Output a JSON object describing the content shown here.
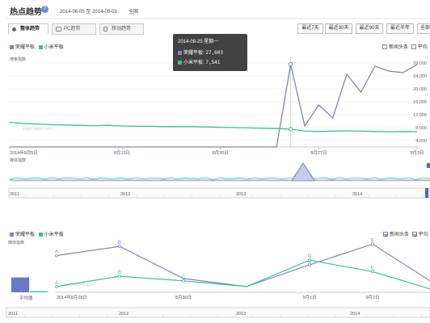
{
  "header": {
    "title": "热点趋势",
    "help_icon": "question-icon",
    "date_start": "2014-08-05",
    "date_sep": "至",
    "date_end": "2014-09-03",
    "region": "全国"
  },
  "tabs": [
    {
      "label": "整体趋势",
      "icon": "overall-icon",
      "active": true
    },
    {
      "label": "PC趋势",
      "icon": "monitor-icon",
      "active": false
    },
    {
      "label": "移动趋势",
      "icon": "mobile-icon",
      "active": false
    }
  ],
  "ranges": [
    "最近7天",
    "最近30天",
    "最近90天",
    "最近半年",
    "全部"
  ],
  "top_legend": [
    {
      "name": "荣耀平板",
      "color": "#7b86c2"
    },
    {
      "name": "小米平板",
      "color": "#3cbf8c"
    }
  ],
  "top_options": [
    {
      "label": "新闻头条",
      "checked": false
    },
    {
      "label": "平均",
      "checked": false
    }
  ],
  "search_index_label": "搜索指数",
  "media_index_label": "媒体指数",
  "tooltip": {
    "date": "2014-08-25 星期一",
    "rows": [
      {
        "name": "荣耀平板:",
        "value": "27,603",
        "color": "#7b86c2"
      },
      {
        "name": "小米平板:",
        "value": "7,541",
        "color": "#3cbf8c"
      }
    ]
  },
  "watermark": "index.baidu.com",
  "chart_data": [
    {
      "type": "line",
      "title": "",
      "ylabel": "搜索指数",
      "x_tick_labels": [
        "2014年8月5日",
        "8月13日",
        "8月20日",
        "8月27日",
        "9月3日"
      ],
      "y_tick_labels": [
        "4,000",
        "8,000",
        "12,000",
        "16,000",
        "20,000",
        "24,000",
        "28,000"
      ],
      "ylim": [
        2000,
        29000
      ],
      "x": [
        "08-05",
        "08-06",
        "08-07",
        "08-08",
        "08-09",
        "08-10",
        "08-11",
        "08-12",
        "08-13",
        "08-14",
        "08-15",
        "08-16",
        "08-17",
        "08-18",
        "08-19",
        "08-20",
        "08-21",
        "08-22",
        "08-23",
        "08-24",
        "08-25",
        "08-26",
        "08-27",
        "08-28",
        "08-29",
        "08-30",
        "08-31",
        "09-01",
        "09-02",
        "09-03"
      ],
      "series": [
        {
          "name": "荣耀平板",
          "color": "#7b86c2",
          "values": [
            2000,
            2000,
            2000,
            2000,
            2000,
            2000,
            2000,
            2000,
            2000,
            2000,
            2000,
            2000,
            2000,
            2000,
            2000,
            2000,
            2000,
            2000,
            2000,
            2000,
            27603,
            8500,
            15000,
            11000,
            24500,
            19000,
            27000,
            25500,
            25000,
            27500
          ]
        },
        {
          "name": "小米平板",
          "color": "#3cbf8c",
          "values": [
            9600,
            9300,
            9100,
            8900,
            8800,
            8700,
            8600,
            8700,
            8500,
            8400,
            8400,
            8300,
            8300,
            8300,
            8200,
            8100,
            8000,
            7900,
            7800,
            7700,
            7541,
            6900,
            6800,
            6900,
            7000,
            6900,
            6800,
            6700,
            6800,
            6700
          ]
        }
      ],
      "grid": true,
      "legend": "top-left"
    },
    {
      "type": "line",
      "title": "",
      "ylabel": "媒体指数",
      "x": [
        "08-05",
        "08-27",
        "09-03"
      ],
      "series": [
        {
          "name": "荣耀平板",
          "color": "#7b86c2",
          "values": [
            1,
            8,
            1
          ]
        },
        {
          "name": "小米平板",
          "color": "#3cbf8c",
          "values": [
            1,
            1,
            1
          ]
        }
      ]
    },
    {
      "type": "line",
      "title": "",
      "ylabel": "媒体指数",
      "x_tick_labels": [
        "2014年8月28日",
        "8月30日",
        "9月1日",
        "9月2日"
      ],
      "series": [
        {
          "name": "荣耀平板",
          "color": "#7b86c2",
          "values": [
            32,
            40,
            12,
            5,
            24,
            42,
            10
          ],
          "labels": [
            "A",
            "B",
            "",
            "",
            "D",
            "E",
            ""
          ]
        },
        {
          "name": "小米平板",
          "color": "#3cbf8c",
          "values": [
            5,
            14,
            10,
            5,
            28,
            18,
            3
          ],
          "labels": [
            "A",
            "B",
            "C",
            "",
            "D",
            "E",
            ""
          ]
        }
      ],
      "average_bars": [
        {
          "name": "荣耀平板",
          "value": 20
        },
        {
          "name": "小米平板",
          "value": 8
        }
      ],
      "average_label": "平均值",
      "legend": "top-left"
    }
  ],
  "timeline": {
    "years": [
      "2011",
      "2012",
      "2013",
      "2014"
    ]
  },
  "bottom_legend": [
    {
      "name": "荣耀平板",
      "color": "#7b86c2"
    },
    {
      "name": "小米平板",
      "color": "#3cbf8c"
    }
  ],
  "bottom_options": [
    {
      "label": "新闻头条",
      "checked": true
    },
    {
      "label": "平均",
      "checked": true
    }
  ]
}
